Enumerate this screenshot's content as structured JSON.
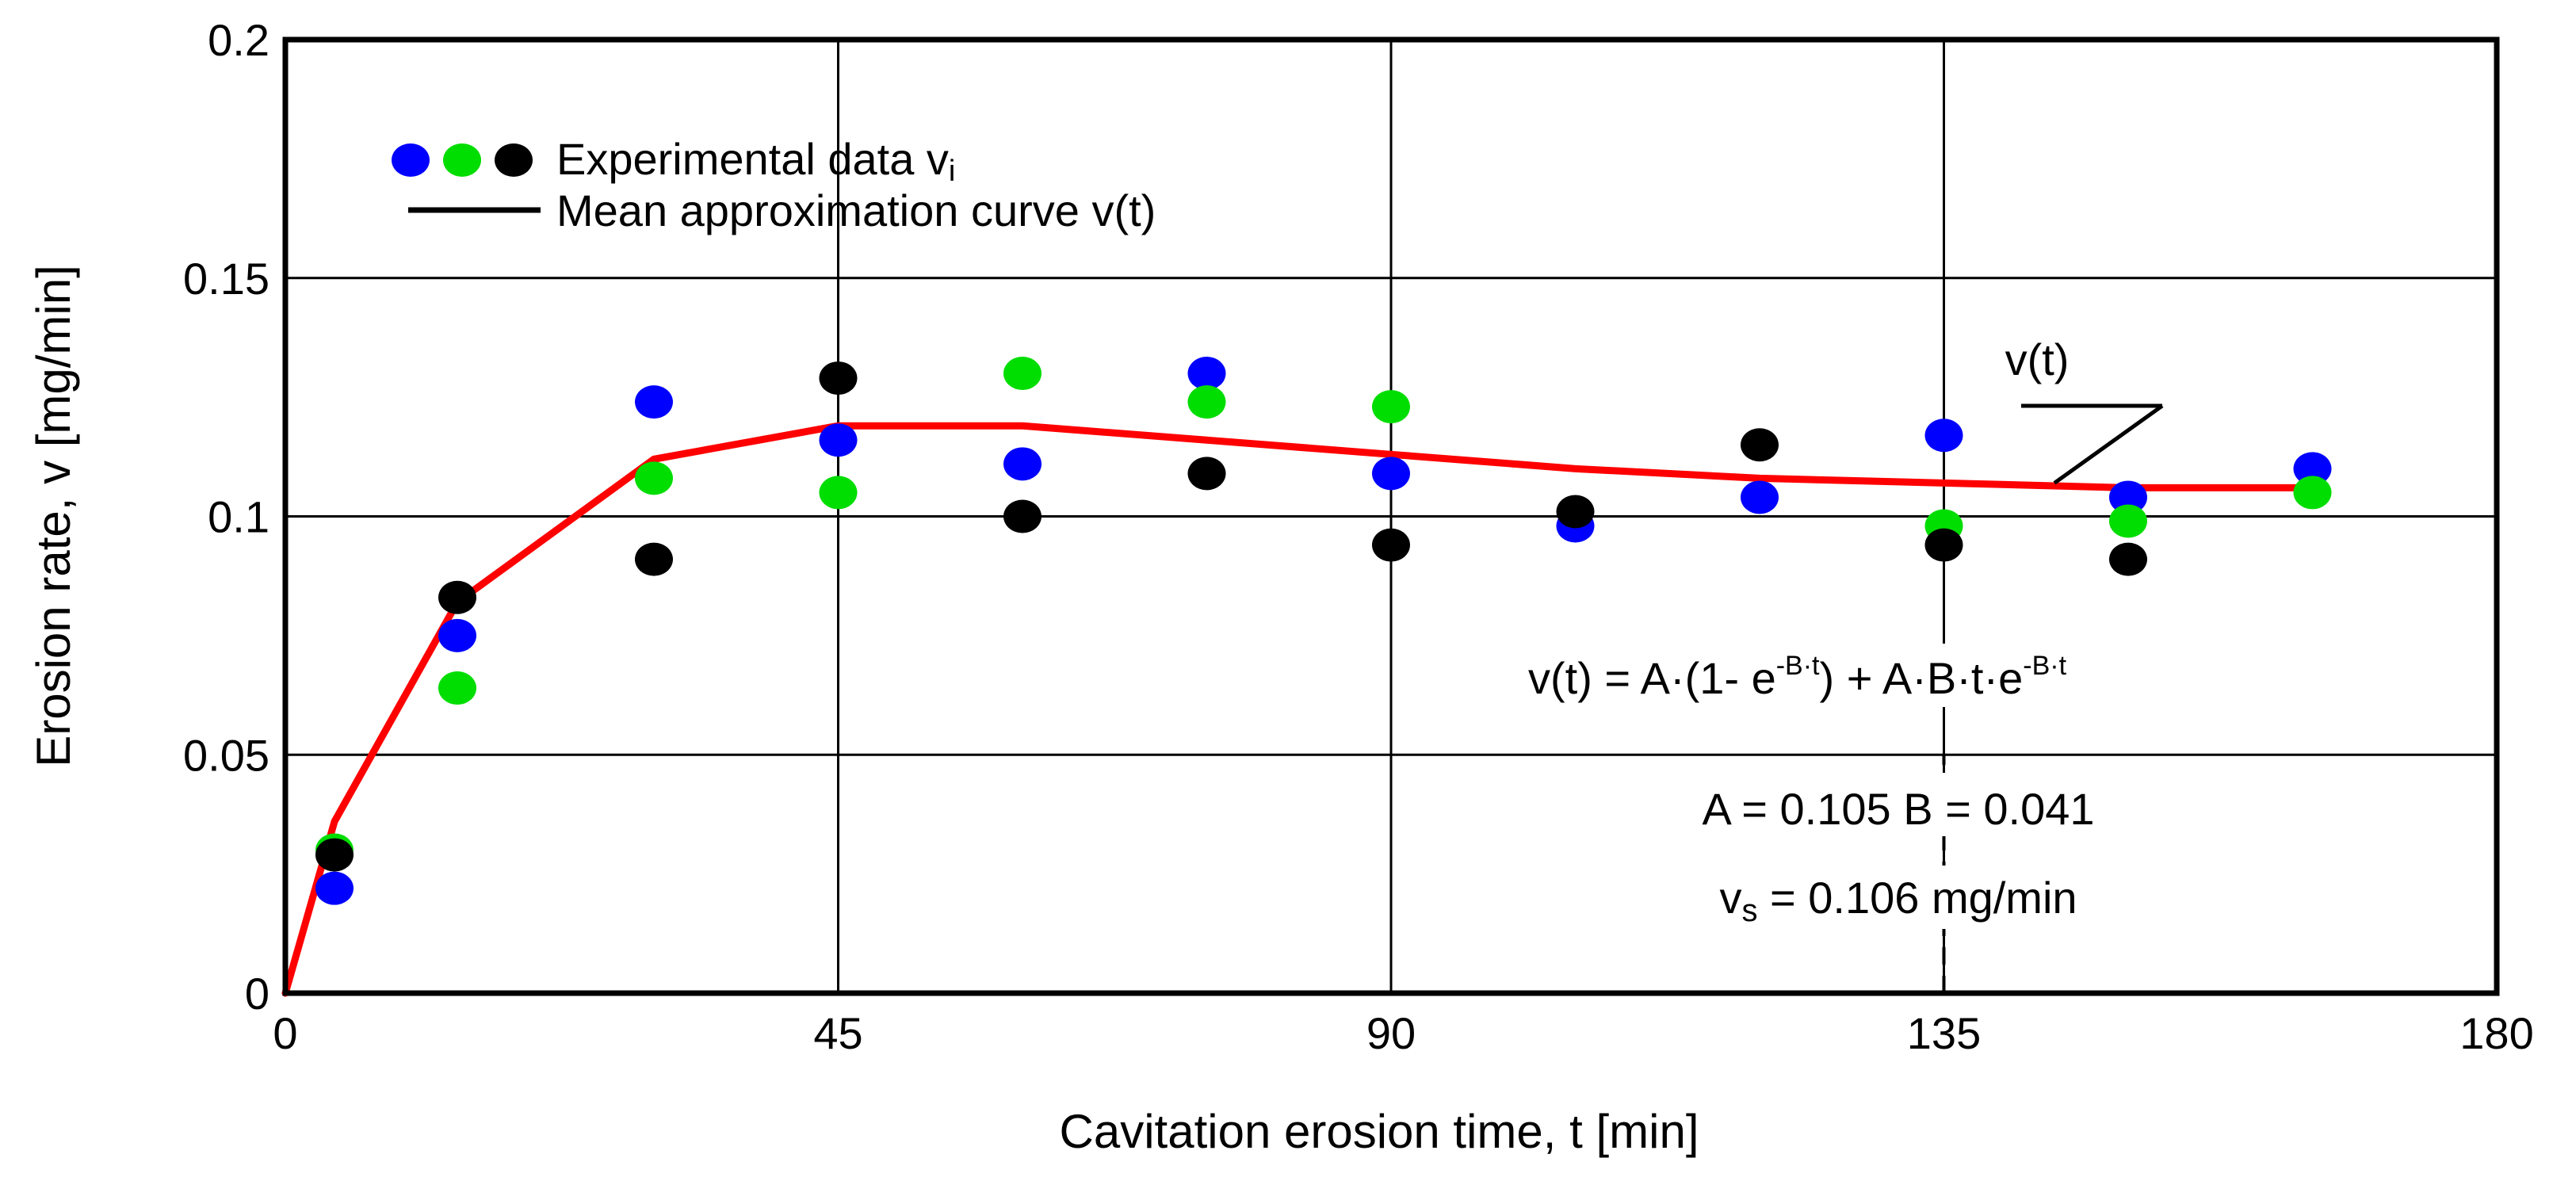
{
  "chart_data": {
    "type": "scatter",
    "title": "",
    "xlabel": "Cavitation erosion time, t [min]",
    "ylabel": "Erosion rate, v [mg/min]",
    "xlim": [
      0,
      180
    ],
    "ylim": [
      0,
      0.2
    ],
    "x_ticks": [
      0,
      45,
      90,
      135,
      180
    ],
    "x_tick_labels": [
      "0",
      "45",
      "90",
      "135",
      "180"
    ],
    "y_ticks": [
      0,
      0.05,
      0.1,
      0.15,
      0.2
    ],
    "y_tick_labels": [
      "0",
      "0.05",
      "0.1",
      "0.15",
      "0.2"
    ],
    "grid": true,
    "legend_position": "top-left",
    "legend": {
      "points_label": "Experimental data v",
      "points_label_sub": "i",
      "curve_label": "Mean approximation curve v(t)"
    },
    "series": [
      {
        "color": "#0000ff",
        "x": [
          4,
          14,
          30,
          45,
          60,
          75,
          90,
          105,
          120,
          135,
          150,
          165
        ],
        "y": [
          0.022,
          0.075,
          0.124,
          0.116,
          0.111,
          0.13,
          0.109,
          0.098,
          0.104,
          0.117,
          0.104,
          0.11
        ]
      },
      {
        "color": "#00dd00",
        "x": [
          4,
          14,
          30,
          45,
          60,
          75,
          90,
          135,
          150,
          165
        ],
        "y": [
          0.03,
          0.064,
          0.108,
          0.105,
          0.13,
          0.124,
          0.123,
          0.098,
          0.099,
          0.105
        ]
      },
      {
        "color": "#000000",
        "x": [
          4,
          14,
          30,
          45,
          60,
          75,
          90,
          105,
          120,
          135,
          150
        ],
        "y": [
          0.029,
          0.083,
          0.091,
          0.129,
          0.1,
          0.109,
          0.094,
          0.101,
          0.115,
          0.094,
          0.091
        ]
      }
    ],
    "curve": {
      "color": "#ff0000",
      "x": [
        0,
        4,
        14,
        30,
        45,
        60,
        75,
        90,
        105,
        120,
        135,
        150,
        165
      ],
      "y": [
        0,
        0.036,
        0.082,
        0.112,
        0.119,
        0.119,
        0.116,
        0.113,
        0.11,
        0.108,
        0.107,
        0.106,
        0.106
      ]
    },
    "curve_label": {
      "text": "v(t)",
      "target": [
        144,
        0.107
      ]
    },
    "annotations": {
      "formula_prefix": "v(t) = A·(1- e",
      "formula_exp1": "-B·t",
      "formula_middle": ") + A·B·t·e",
      "formula_exp2": "-B·t",
      "params": "A = 0.105  B = 0.041",
      "vs_main": "v",
      "vs_sub": "s",
      "vs_rest": " = 0.106 mg/min"
    },
    "dashed_marker": {
      "x": 135,
      "y_from": 0,
      "y_to": 0.05
    }
  }
}
